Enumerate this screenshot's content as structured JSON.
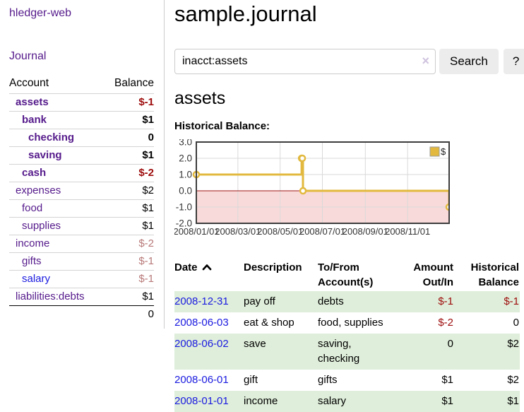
{
  "colors": {
    "link_purple": "#551a8b",
    "link_blue": "#1a1ae0",
    "negative_red": "#9d0b0b",
    "negative_muted": "#b87878",
    "row_highlight_green": "#dfeeda",
    "button_bg": "#ececec",
    "chart_line_gold": "#e2b93e",
    "chart_negative_bg": "#f9dada",
    "zero_line_red": "#9d1515",
    "grid_line": "#d9d9d9",
    "chart_border": "#3d3d3d",
    "tick_text": "#333333"
  },
  "sidebar": {
    "app_title": "hledger-web",
    "nav_journal": "Journal",
    "accounts": {
      "col_account": "Account",
      "col_balance": "Balance",
      "rows": [
        {
          "name": "assets",
          "depth": 1,
          "bold": true,
          "balance": "$-1",
          "tone": "neg"
        },
        {
          "name": "bank",
          "depth": 2,
          "bold": true,
          "balance": "$1",
          "tone": ""
        },
        {
          "name": "checking",
          "depth": 3,
          "bold": true,
          "balance": "0",
          "tone": ""
        },
        {
          "name": "saving",
          "depth": 3,
          "bold": true,
          "balance": "$1",
          "tone": ""
        },
        {
          "name": "cash",
          "depth": 2,
          "bold": true,
          "balance": "$-2",
          "tone": "neg"
        },
        {
          "name": "expenses",
          "depth": 1,
          "bold": false,
          "balance": "$2",
          "tone": ""
        },
        {
          "name": "food",
          "depth": 2,
          "bold": false,
          "balance": "$1",
          "tone": ""
        },
        {
          "name": "supplies",
          "depth": 2,
          "bold": false,
          "balance": "$1",
          "tone": ""
        },
        {
          "name": "income",
          "depth": 1,
          "bold": false,
          "balance": "$-2",
          "tone": "negmuted"
        },
        {
          "name": "gifts",
          "depth": 2,
          "bold": false,
          "balance": "$-1",
          "tone": "negmuted"
        },
        {
          "name": "salary",
          "depth": 2,
          "bold": false,
          "balance": "$-1",
          "tone": "negmuted",
          "link": "blue"
        },
        {
          "name": "liabilities:debts",
          "depth": 1,
          "bold": false,
          "balance": "$1",
          "tone": ""
        }
      ],
      "total": "0"
    }
  },
  "main": {
    "title": "sample.journal",
    "search": {
      "value": "inacct:assets",
      "clear_icon": "×",
      "search_button": "Search",
      "help_button": "?"
    },
    "heading": "assets",
    "chart_title": "Historical Balance:"
  },
  "chart_data": {
    "type": "line",
    "style": "step",
    "title": "Historical Balance",
    "series": [
      {
        "name": "$",
        "points": [
          [
            "2008-01-01",
            1
          ],
          [
            "2008-06-01",
            2
          ],
          [
            "2008-06-02",
            2
          ],
          [
            "2008-06-03",
            0
          ],
          [
            "2008-12-31",
            -1
          ]
        ]
      }
    ],
    "ylim": [
      -2,
      3
    ],
    "xlim": [
      "2008-01-01",
      "2008-12-31"
    ],
    "y_ticks": [
      {
        "value": 3,
        "label": "3.0"
      },
      {
        "value": 2,
        "label": "2.0"
      },
      {
        "value": 1,
        "label": "1.0"
      },
      {
        "value": 0,
        "label": "0.0"
      },
      {
        "value": -1,
        "label": "-1.0"
      },
      {
        "value": -2,
        "label": "-2.0"
      }
    ],
    "x_ticks": [
      {
        "date": "2008-01-01",
        "label": "2008/01/01"
      },
      {
        "date": "2008-03-01",
        "label": "2008/03/01"
      },
      {
        "date": "2008-05-01",
        "label": "2008/05/01"
      },
      {
        "date": "2008-07-01",
        "label": "2008/07/01"
      },
      {
        "date": "2008-09-01",
        "label": "2008/09/01"
      },
      {
        "date": "2008-11-01",
        "label": "2008/11/01"
      }
    ],
    "legend": {
      "label": "$",
      "position": "top-right"
    },
    "negative_region_shaded": true,
    "grid": true
  },
  "transactions": {
    "sort": "date-ascending",
    "headers": {
      "date": "Date",
      "description": "Description",
      "accounts": "To/From Account(s)",
      "amount": "Amount Out/In",
      "balance": "Historical Balance"
    },
    "rows": [
      {
        "date": "2008-12-31",
        "description": "pay off",
        "accounts": "debts",
        "amount": "$-1",
        "amount_neg": true,
        "balance": "$-1",
        "balance_neg": true,
        "highlight": true
      },
      {
        "date": "2008-06-03",
        "description": "eat & shop",
        "accounts": "food, supplies",
        "amount": "$-2",
        "amount_neg": true,
        "balance": "0",
        "balance_neg": false,
        "highlight": false
      },
      {
        "date": "2008-06-02",
        "description": "save",
        "accounts": "saving, checking",
        "amount": "0",
        "amount_neg": false,
        "balance": "$2",
        "balance_neg": false,
        "highlight": true
      },
      {
        "date": "2008-06-01",
        "description": "gift",
        "accounts": "gifts",
        "amount": "$1",
        "amount_neg": false,
        "balance": "$2",
        "balance_neg": false,
        "highlight": false
      },
      {
        "date": "2008-01-01",
        "description": "income",
        "accounts": "salary",
        "amount": "$1",
        "amount_neg": false,
        "balance": "$1",
        "balance_neg": false,
        "highlight": true
      }
    ]
  }
}
